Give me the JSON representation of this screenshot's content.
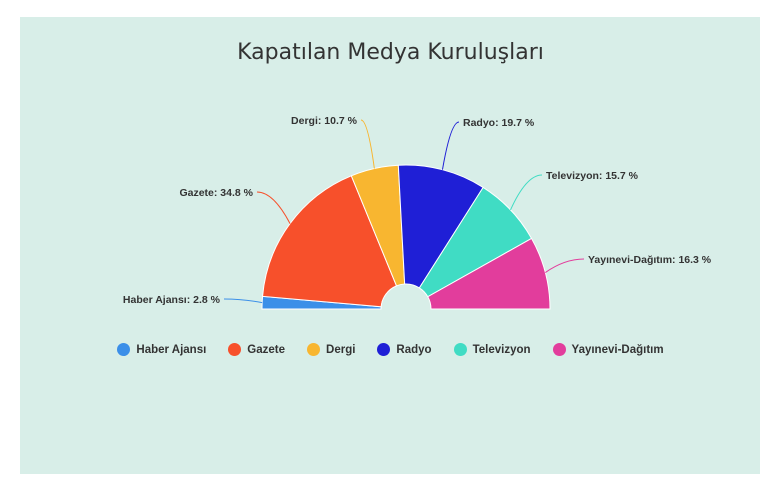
{
  "chart_data": {
    "type": "pie",
    "subtype": "semicircle-donut",
    "title": "Kapatılan Medya Kuruluşları",
    "categories": [
      "Haber Ajansı",
      "Gazete",
      "Dergi",
      "Radyo",
      "Televizyon",
      "Yayınevi-Dağıtım"
    ],
    "values": [
      2.8,
      34.8,
      10.7,
      19.7,
      15.7,
      16.3
    ],
    "data_labels": [
      "Haber Ajansı: 2.8 %",
      "Gazete: 34.8 %",
      "Dergi: 10.7 %",
      "Radyo: 19.7 %",
      "Televizyon: 15.7 %",
      "Yayınevi-Dağıtım: 16.3 %"
    ],
    "colors": [
      "#3b8fe8",
      "#f7502b",
      "#f8b630",
      "#1f1fd6",
      "#40dcc4",
      "#e23d9c"
    ],
    "legend_position": "bottom"
  }
}
